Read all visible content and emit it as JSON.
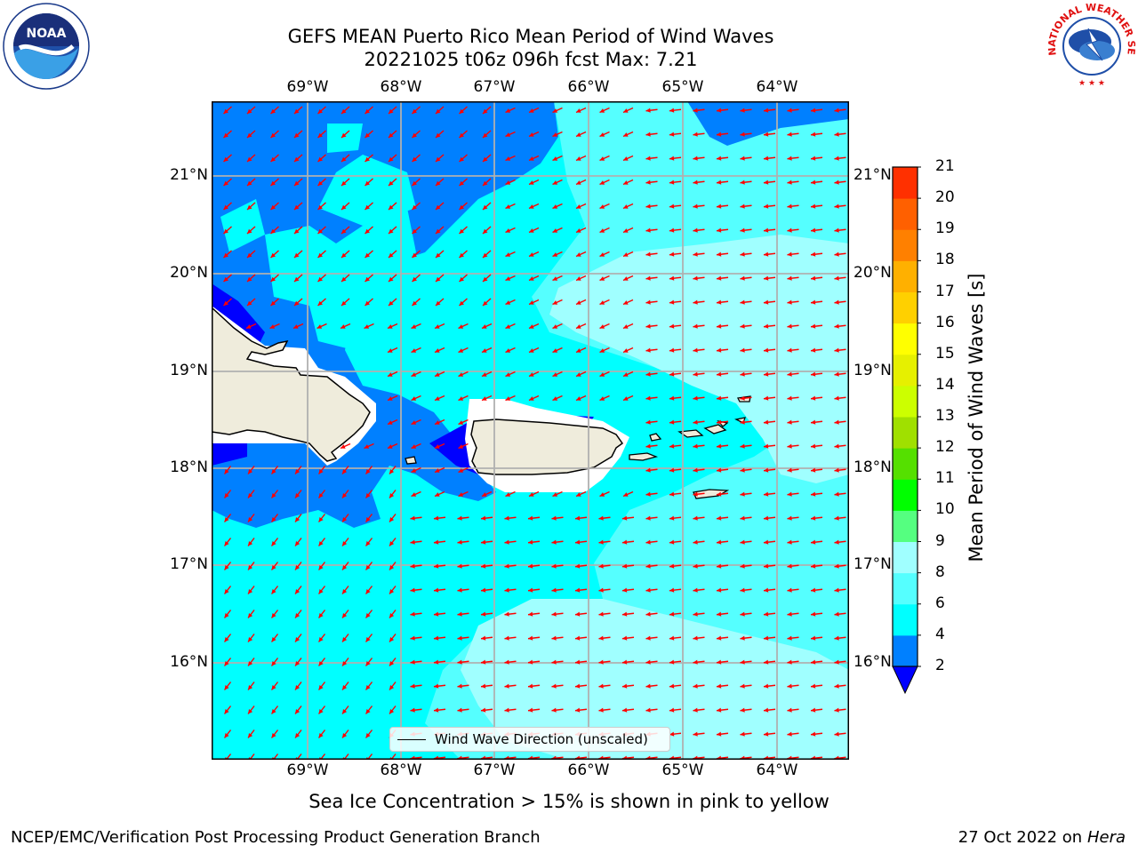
{
  "header": {
    "title_line1": "GEFS MEAN Puerto Rico Mean Period of Wind Waves",
    "title_line2": "20221025 t06z 096h fcst   Max: 7.21"
  },
  "map": {
    "lon_labels": [
      "69°W",
      "68°W",
      "67°W",
      "66°W",
      "65°W",
      "64°W"
    ],
    "lat_labels": [
      "21°N",
      "20°N",
      "19°N",
      "18°N",
      "17°N",
      "16°N"
    ],
    "legend_label": "Wind Wave Direction (unscaled)",
    "arrow_color": "#ff0000",
    "fill_colors": {
      "band_2_4": "#0080ff",
      "band_lt2": "#0000ff",
      "band_4_6": "#00ffff",
      "band_6_8": "#55ffff",
      "band_8_9": "#a0ffff",
      "land": "#efecdc"
    }
  },
  "colorbar": {
    "label": "Mean Period of Wind Waves [s]",
    "ticks": [
      "2",
      "4",
      "6",
      "8",
      "9",
      "10",
      "11",
      "12",
      "13",
      "14",
      "15",
      "16",
      "17",
      "18",
      "19",
      "20",
      "21"
    ],
    "colors": [
      "#0080ff",
      "#00ffff",
      "#55ffff",
      "#a0ffff",
      "#55ff80",
      "#00ff00",
      "#55e000",
      "#a0e000",
      "#ccff00",
      "#e6f000",
      "#ffff00",
      "#ffd000",
      "#ffb000",
      "#ff8000",
      "#ff6000",
      "#ff3000"
    ],
    "under_color": "#0000ff"
  },
  "notes": {
    "sea_ice": "Sea Ice Concentration > 15% is shown in pink to yellow"
  },
  "footer": {
    "left": "NCEP/EMC/Verification Post Processing Product Generation Branch",
    "date": "27 Oct 2022 on",
    "machine": "Hera"
  },
  "logos": {
    "noaa_text": "NOAA",
    "nws_text": "NATIONAL WEATHER SERVICE"
  }
}
